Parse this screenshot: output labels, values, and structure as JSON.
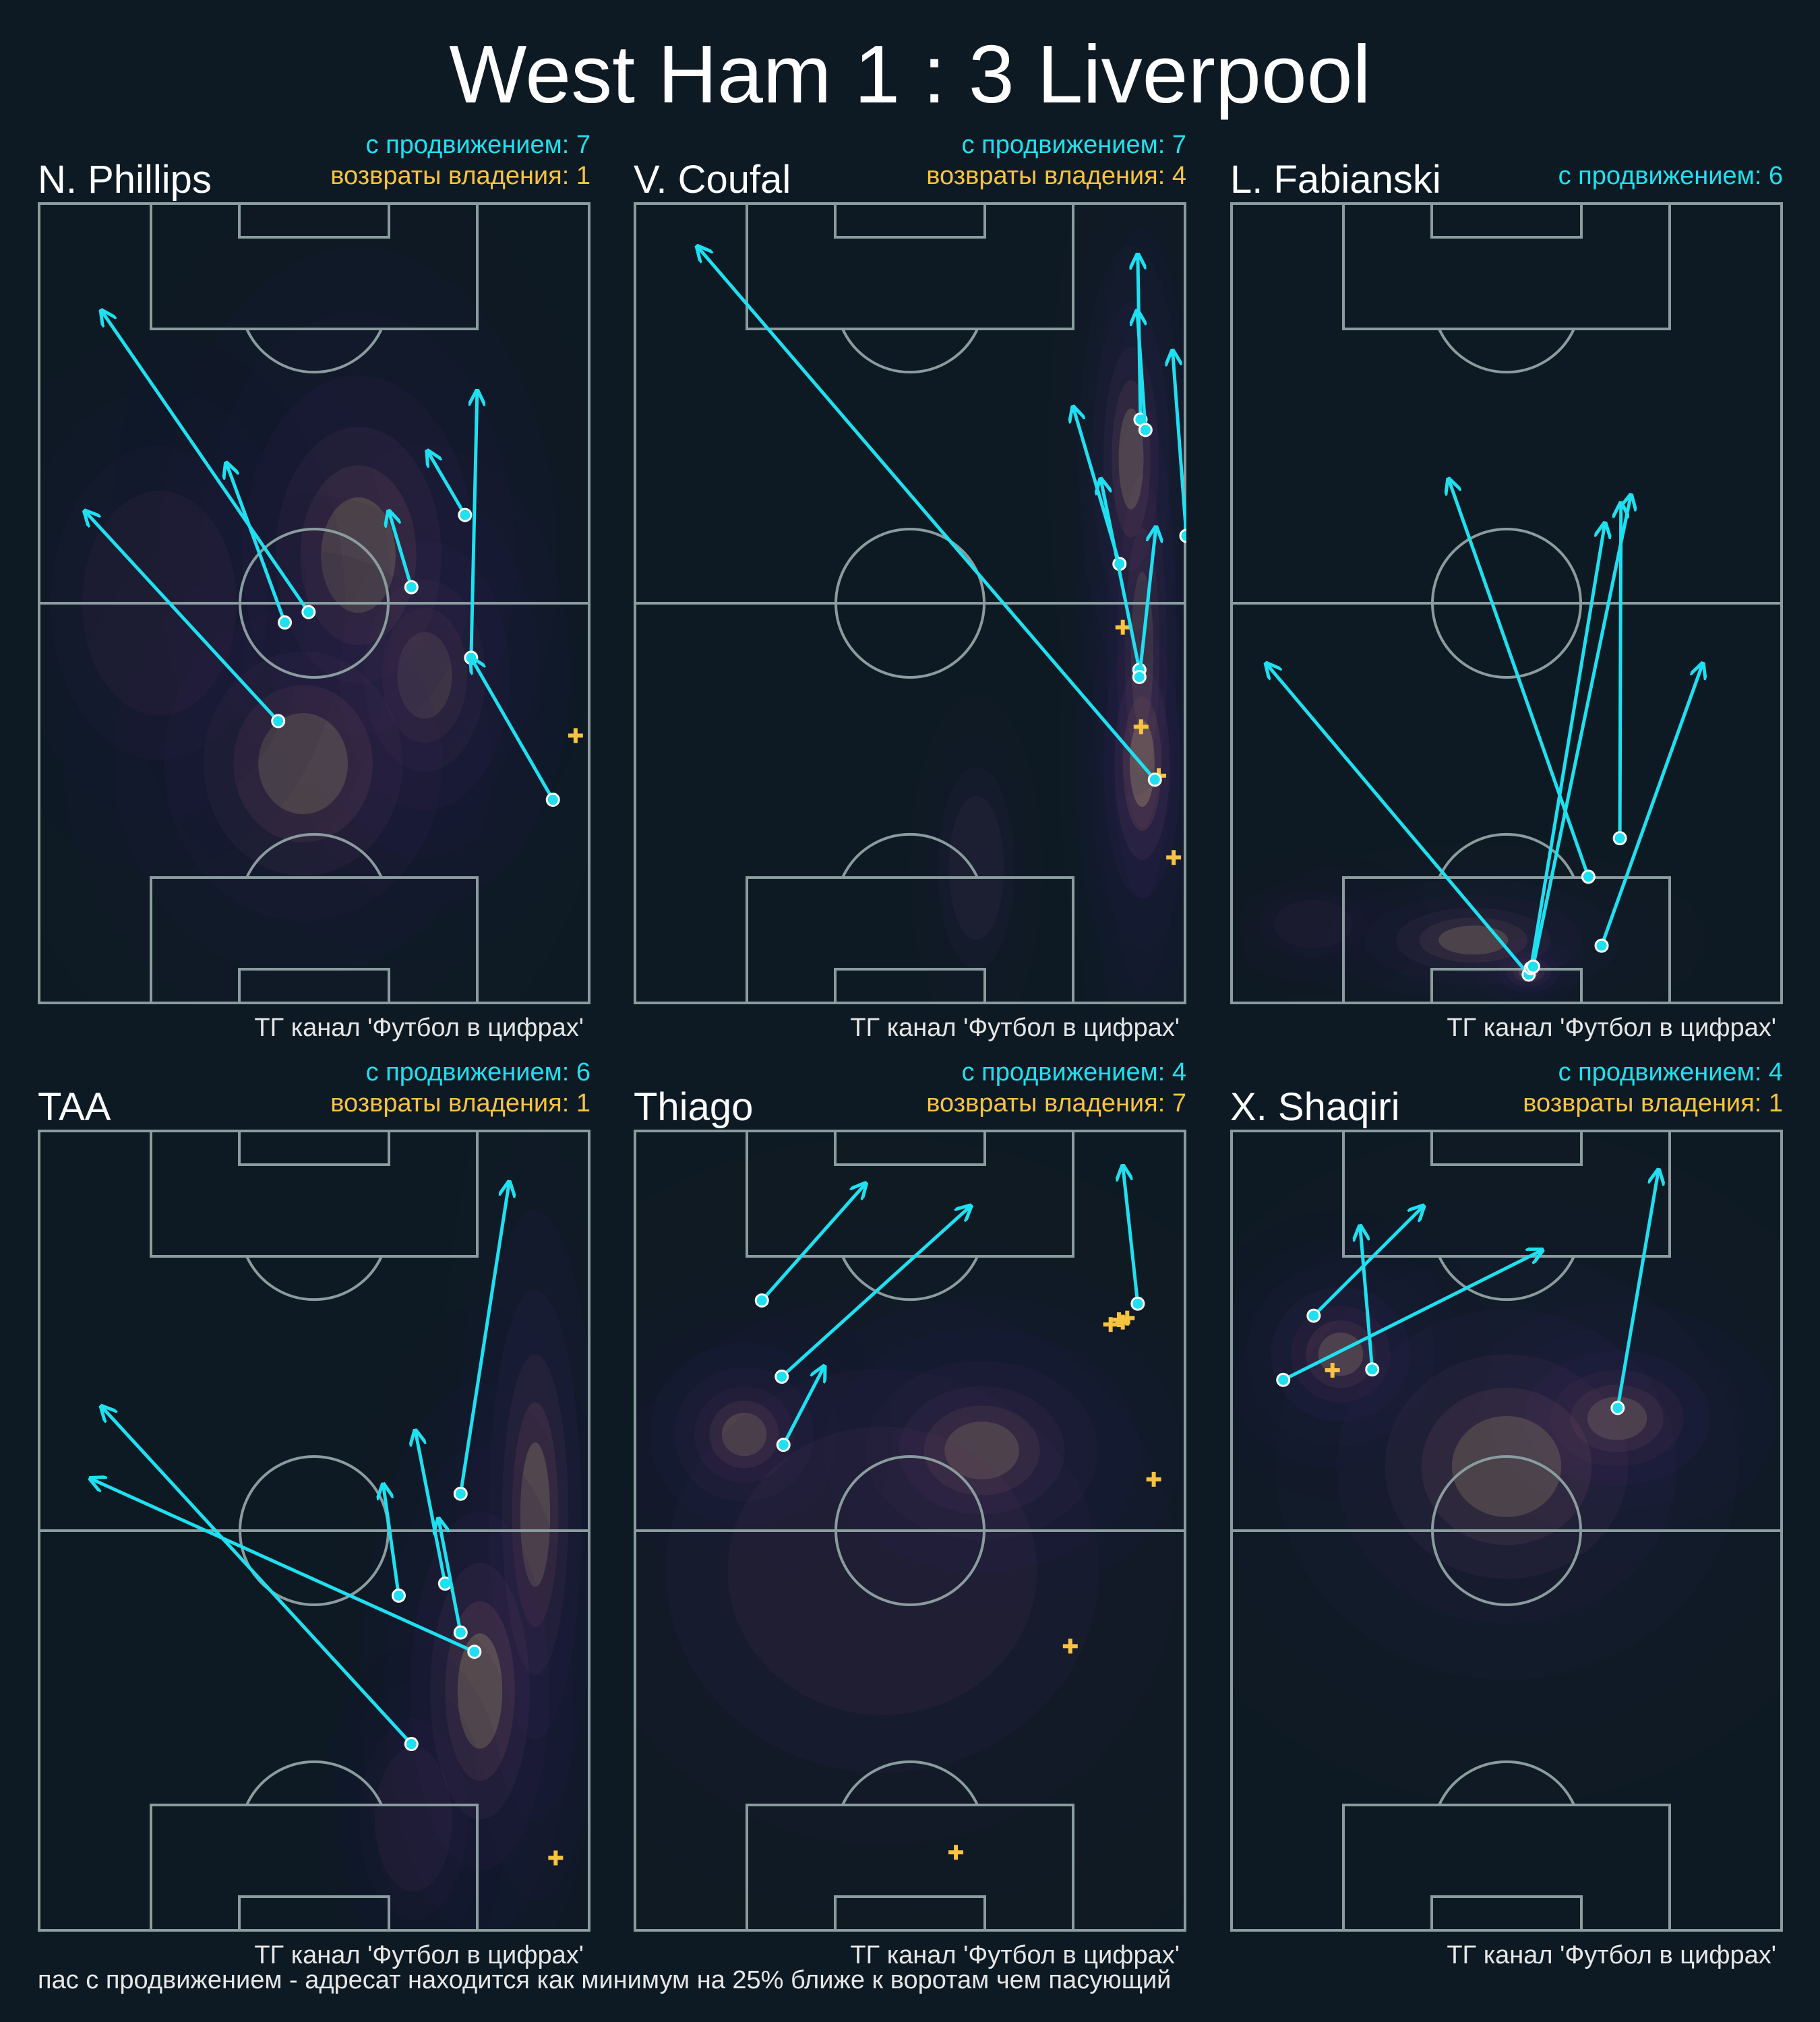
{
  "title": "West Ham 1 : 3 Liverpool",
  "footnote": "пас с продвижением - адресат находится как минимум на 25% ближе к воротам чем пасующий",
  "colors": {
    "background": "#0e1a23",
    "pitch_lines": "#8a9c9e",
    "progressive_pass": "#1fe0f0",
    "recovery": "#f7c341",
    "density_low": "#221f45",
    "density_high": "#b8a978"
  },
  "chart_data": [
    {
      "type": "scatter",
      "player": "N. Phillips",
      "progressive_label": "с продвижением: 7",
      "recoveries_label": "возвраты владения: 1",
      "credit": "ТГ канал 'Футбол в цифрах'",
      "x_range": [
        0,
        100
      ],
      "y_range": [
        0,
        100
      ],
      "progressive_passes": [
        {
          "x1": 49.0,
          "y1": 48.9,
          "x2": 11.5,
          "y2": 86.5
        },
        {
          "x1": 43.5,
          "y1": 35.3,
          "x2": 8.5,
          "y2": 61.5
        },
        {
          "x1": 44.7,
          "y1": 47.6,
          "x2": 34.1,
          "y2": 67.5
        },
        {
          "x1": 67.6,
          "y1": 52.0,
          "x2": 63.5,
          "y2": 61.5
        },
        {
          "x1": 77.3,
          "y1": 61.0,
          "x2": 70.5,
          "y2": 69.0
        },
        {
          "x1": 78.4,
          "y1": 43.2,
          "x2": 79.5,
          "y2": 76.5
        },
        {
          "x1": 93.2,
          "y1": 25.5,
          "x2": 78.4,
          "y2": 43.2
        }
      ],
      "recoveries": [
        {
          "x": 97.3,
          "y": 33.5
        }
      ],
      "density": [
        {
          "x": 70,
          "y": 41,
          "sx": 11,
          "sy": 12,
          "w": 1.0
        },
        {
          "x": 58,
          "y": 56,
          "sx": 15,
          "sy": 16,
          "w": 0.5
        },
        {
          "x": 48,
          "y": 30,
          "sx": 18,
          "sy": 14,
          "w": 0.35
        },
        {
          "x": 22,
          "y": 50,
          "sx": 14,
          "sy": 14,
          "w": 0.18
        }
      ]
    },
    {
      "type": "scatter",
      "player": "V. Coufal",
      "progressive_label": "с продвижением: 7",
      "recoveries_label": "возвраты владения: 4",
      "credit": "ТГ канал 'Футбол в цифрах'",
      "x_range": [
        0,
        100
      ],
      "y_range": [
        0,
        100
      ],
      "progressive_passes": [
        {
          "x1": 87.9,
          "y1": 54.9,
          "x2": 79.5,
          "y2": 74.5
        },
        {
          "x1": 91.7,
          "y1": 72.9,
          "x2": 91.2,
          "y2": 93.5
        },
        {
          "x1": 92.6,
          "y1": 71.6,
          "x2": 91.1,
          "y2": 86.5
        },
        {
          "x1": 100,
          "y1": 58.4,
          "x2": 97.5,
          "y2": 81.5
        },
        {
          "x1": 91.5,
          "y1": 41.7,
          "x2": 84.5,
          "y2": 65.5
        },
        {
          "x1": 91.5,
          "y1": 40.8,
          "x2": 94.5,
          "y2": 59.5
        },
        {
          "x1": 94.3,
          "y1": 28.0,
          "x2": 11.5,
          "y2": 94.5
        }
      ],
      "recoveries": [
        {
          "x": 88.5,
          "y": 47.0
        },
        {
          "x": 91.8,
          "y": 34.6
        },
        {
          "x": 95.0,
          "y": 28.5
        },
        {
          "x": 97.7,
          "y": 18.3
        }
      ],
      "density": [
        {
          "x": 92,
          "y": 44,
          "sx": 4.5,
          "sy": 22,
          "w": 1.0
        },
        {
          "x": 92,
          "y": 30,
          "sx": 5,
          "sy": 12,
          "w": 0.6
        },
        {
          "x": 62,
          "y": 17,
          "sx": 5,
          "sy": 9,
          "w": 0.22
        },
        {
          "x": 90,
          "y": 68,
          "sx": 5,
          "sy": 14,
          "w": 0.3
        }
      ]
    },
    {
      "type": "scatter",
      "player": "L. Fabianski",
      "progressive_label": "с продвижением: 6",
      "recoveries_label": "",
      "credit": "ТГ канал 'Футбол в цифрах'",
      "x_range": [
        0,
        100
      ],
      "y_range": [
        0,
        100
      ],
      "progressive_passes": [
        {
          "x1": 54.0,
          "y1": 3.7,
          "x2": 6.5,
          "y2": 42.5
        },
        {
          "x1": 64.8,
          "y1": 15.9,
          "x2": 39.5,
          "y2": 65.5
        },
        {
          "x1": 54.4,
          "y1": 4.5,
          "x2": 67.8,
          "y2": 60.0
        },
        {
          "x1": 54.8,
          "y1": 4.7,
          "x2": 72.5,
          "y2": 63.5
        },
        {
          "x1": 70.5,
          "y1": 20.7,
          "x2": 70.7,
          "y2": 62.5
        },
        {
          "x1": 67.2,
          "y1": 7.3,
          "x2": 85.5,
          "y2": 42.5
        }
      ],
      "recoveries": [],
      "density": [
        {
          "x": 54,
          "y": 4,
          "sx": 4,
          "sy": 1.8,
          "w": 1.0
        },
        {
          "x": 44,
          "y": 8,
          "sx": 14,
          "sy": 4,
          "w": 0.3
        },
        {
          "x": 15,
          "y": 10,
          "sx": 7,
          "sy": 3,
          "w": 0.08
        }
      ]
    },
    {
      "type": "scatter",
      "player": "TAA",
      "progressive_label": "с продвижением: 6",
      "recoveries_label": "возвраты владения: 1",
      "credit": "ТГ канал 'Футбол в цифрах'",
      "x_range": [
        0,
        100
      ],
      "y_range": [
        0,
        100
      ],
      "progressive_passes": [
        {
          "x1": 65.3,
          "y1": 41.9,
          "x2": 62.5,
          "y2": 55.8
        },
        {
          "x1": 73.7,
          "y1": 43.4,
          "x2": 68.3,
          "y2": 62.5
        },
        {
          "x1": 76.5,
          "y1": 54.6,
          "x2": 85.3,
          "y2": 93.5
        },
        {
          "x1": 76.5,
          "y1": 37.3,
          "x2": 72.5,
          "y2": 51.5
        },
        {
          "x1": 79.0,
          "y1": 34.9,
          "x2": 9.5,
          "y2": 56.5
        },
        {
          "x1": 67.6,
          "y1": 23.4,
          "x2": 11.5,
          "y2": 65.5
        }
      ],
      "recoveries": [
        {
          "x": 93.7,
          "y": 9.2
        }
      ],
      "density": [
        {
          "x": 90,
          "y": 52,
          "sx": 6,
          "sy": 20,
          "w": 1.0
        },
        {
          "x": 80,
          "y": 30,
          "sx": 9,
          "sy": 16,
          "w": 0.5
        },
        {
          "x": 68,
          "y": 14,
          "sx": 7,
          "sy": 9,
          "w": 0.2
        }
      ]
    },
    {
      "type": "scatter",
      "player": "Thiago",
      "progressive_label": "с продвижением: 4",
      "recoveries_label": "возвраты владения: 7",
      "credit": "ТГ канал 'Футбол в цифрах'",
      "x_range": [
        0,
        100
      ],
      "y_range": [
        0,
        100
      ],
      "progressive_passes": [
        {
          "x1": 23.2,
          "y1": 78.7,
          "x2": 42.0,
          "y2": 93.3
        },
        {
          "x1": 26.8,
          "y1": 69.2,
          "x2": 61.0,
          "y2": 90.5
        },
        {
          "x1": 27.1,
          "y1": 60.7,
          "x2": 34.5,
          "y2": 70.5
        },
        {
          "x1": 91.2,
          "y1": 78.3,
          "x2": 88.5,
          "y2": 95.5
        }
      ],
      "recoveries": [
        {
          "x": 86.3,
          "y": 75.7
        },
        {
          "x": 87.8,
          "y": 76.3
        },
        {
          "x": 89.3,
          "y": 76.5
        },
        {
          "x": 94.1,
          "y": 56.4
        },
        {
          "x": 79.0,
          "y": 35.6
        },
        {
          "x": 58.3,
          "y": 9.9
        },
        {
          "x": 88.5,
          "y": 76.0
        }
      ],
      "density": [
        {
          "x": 63,
          "y": 60,
          "sx": 15,
          "sy": 8,
          "w": 1.0
        },
        {
          "x": 20,
          "y": 62,
          "sx": 9,
          "sy": 6,
          "w": 0.55
        },
        {
          "x": 45,
          "y": 45,
          "sx": 28,
          "sy": 18,
          "w": 0.25
        }
      ]
    },
    {
      "type": "scatter",
      "player": "X. Shaqiri",
      "progressive_label": "с продвижением: 4",
      "recoveries_label": "возвраты владения: 1",
      "credit": "ТГ канал 'Футбол в цифрах'",
      "x_range": [
        0,
        100
      ],
      "y_range": [
        0,
        100
      ],
      "progressive_passes": [
        {
          "x1": 15.1,
          "y1": 76.8,
          "x2": 35.0,
          "y2": 90.5
        },
        {
          "x1": 25.7,
          "y1": 70.1,
          "x2": 23.5,
          "y2": 88.0
        },
        {
          "x1": 9.6,
          "y1": 68.8,
          "x2": 56.5,
          "y2": 85.0
        },
        {
          "x1": 70.1,
          "y1": 65.3,
          "x2": 77.5,
          "y2": 95.0
        }
      ],
      "recoveries": [
        {
          "x": 18.5,
          "y": 70.0
        }
      ],
      "density": [
        {
          "x": 70,
          "y": 64,
          "sx": 12,
          "sy": 6,
          "w": 1.0
        },
        {
          "x": 20,
          "y": 72,
          "sx": 9,
          "sy": 6,
          "w": 0.55
        },
        {
          "x": 50,
          "y": 58,
          "sx": 22,
          "sy": 14,
          "w": 0.3
        }
      ]
    }
  ]
}
